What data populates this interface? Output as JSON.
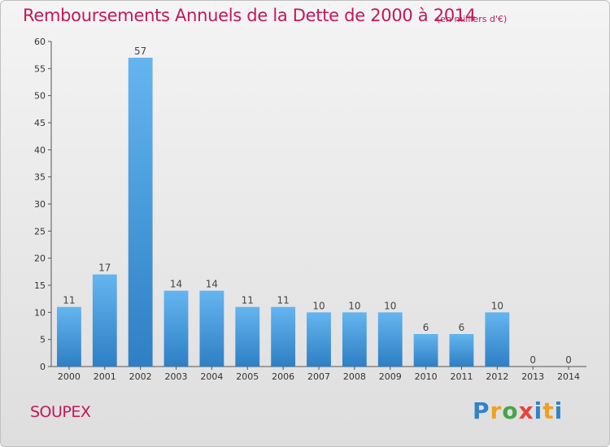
{
  "header": {
    "title": "Remboursements Annuels de la Dette de 2000 à 2014",
    "unit": "(en milliers d'€)"
  },
  "footer": {
    "commune": "SOUPEX",
    "logo_text": "Proxiti"
  },
  "colors": {
    "title": "#c2185b",
    "bar_top": "#64b5ef",
    "bar_bottom": "#2e7fc4",
    "axis": "#555555"
  },
  "chart_data": {
    "type": "bar",
    "title": "Remboursements Annuels de la Dette de 2000 à 2014",
    "subtitle": "(en milliers d'€)",
    "xlabel": "",
    "ylabel": "",
    "categories": [
      "2000",
      "2001",
      "2002",
      "2003",
      "2004",
      "2005",
      "2006",
      "2007",
      "2008",
      "2009",
      "2010",
      "2011",
      "2012",
      "2013",
      "2014"
    ],
    "values": [
      11,
      17,
      57,
      14,
      14,
      11,
      11,
      10,
      10,
      10,
      6,
      6,
      10,
      0,
      0
    ],
    "ylim": [
      0,
      60
    ],
    "yticks": [
      0,
      5,
      10,
      15,
      20,
      25,
      30,
      35,
      40,
      45,
      50,
      55,
      60
    ],
    "grid": false,
    "legend": "none"
  }
}
